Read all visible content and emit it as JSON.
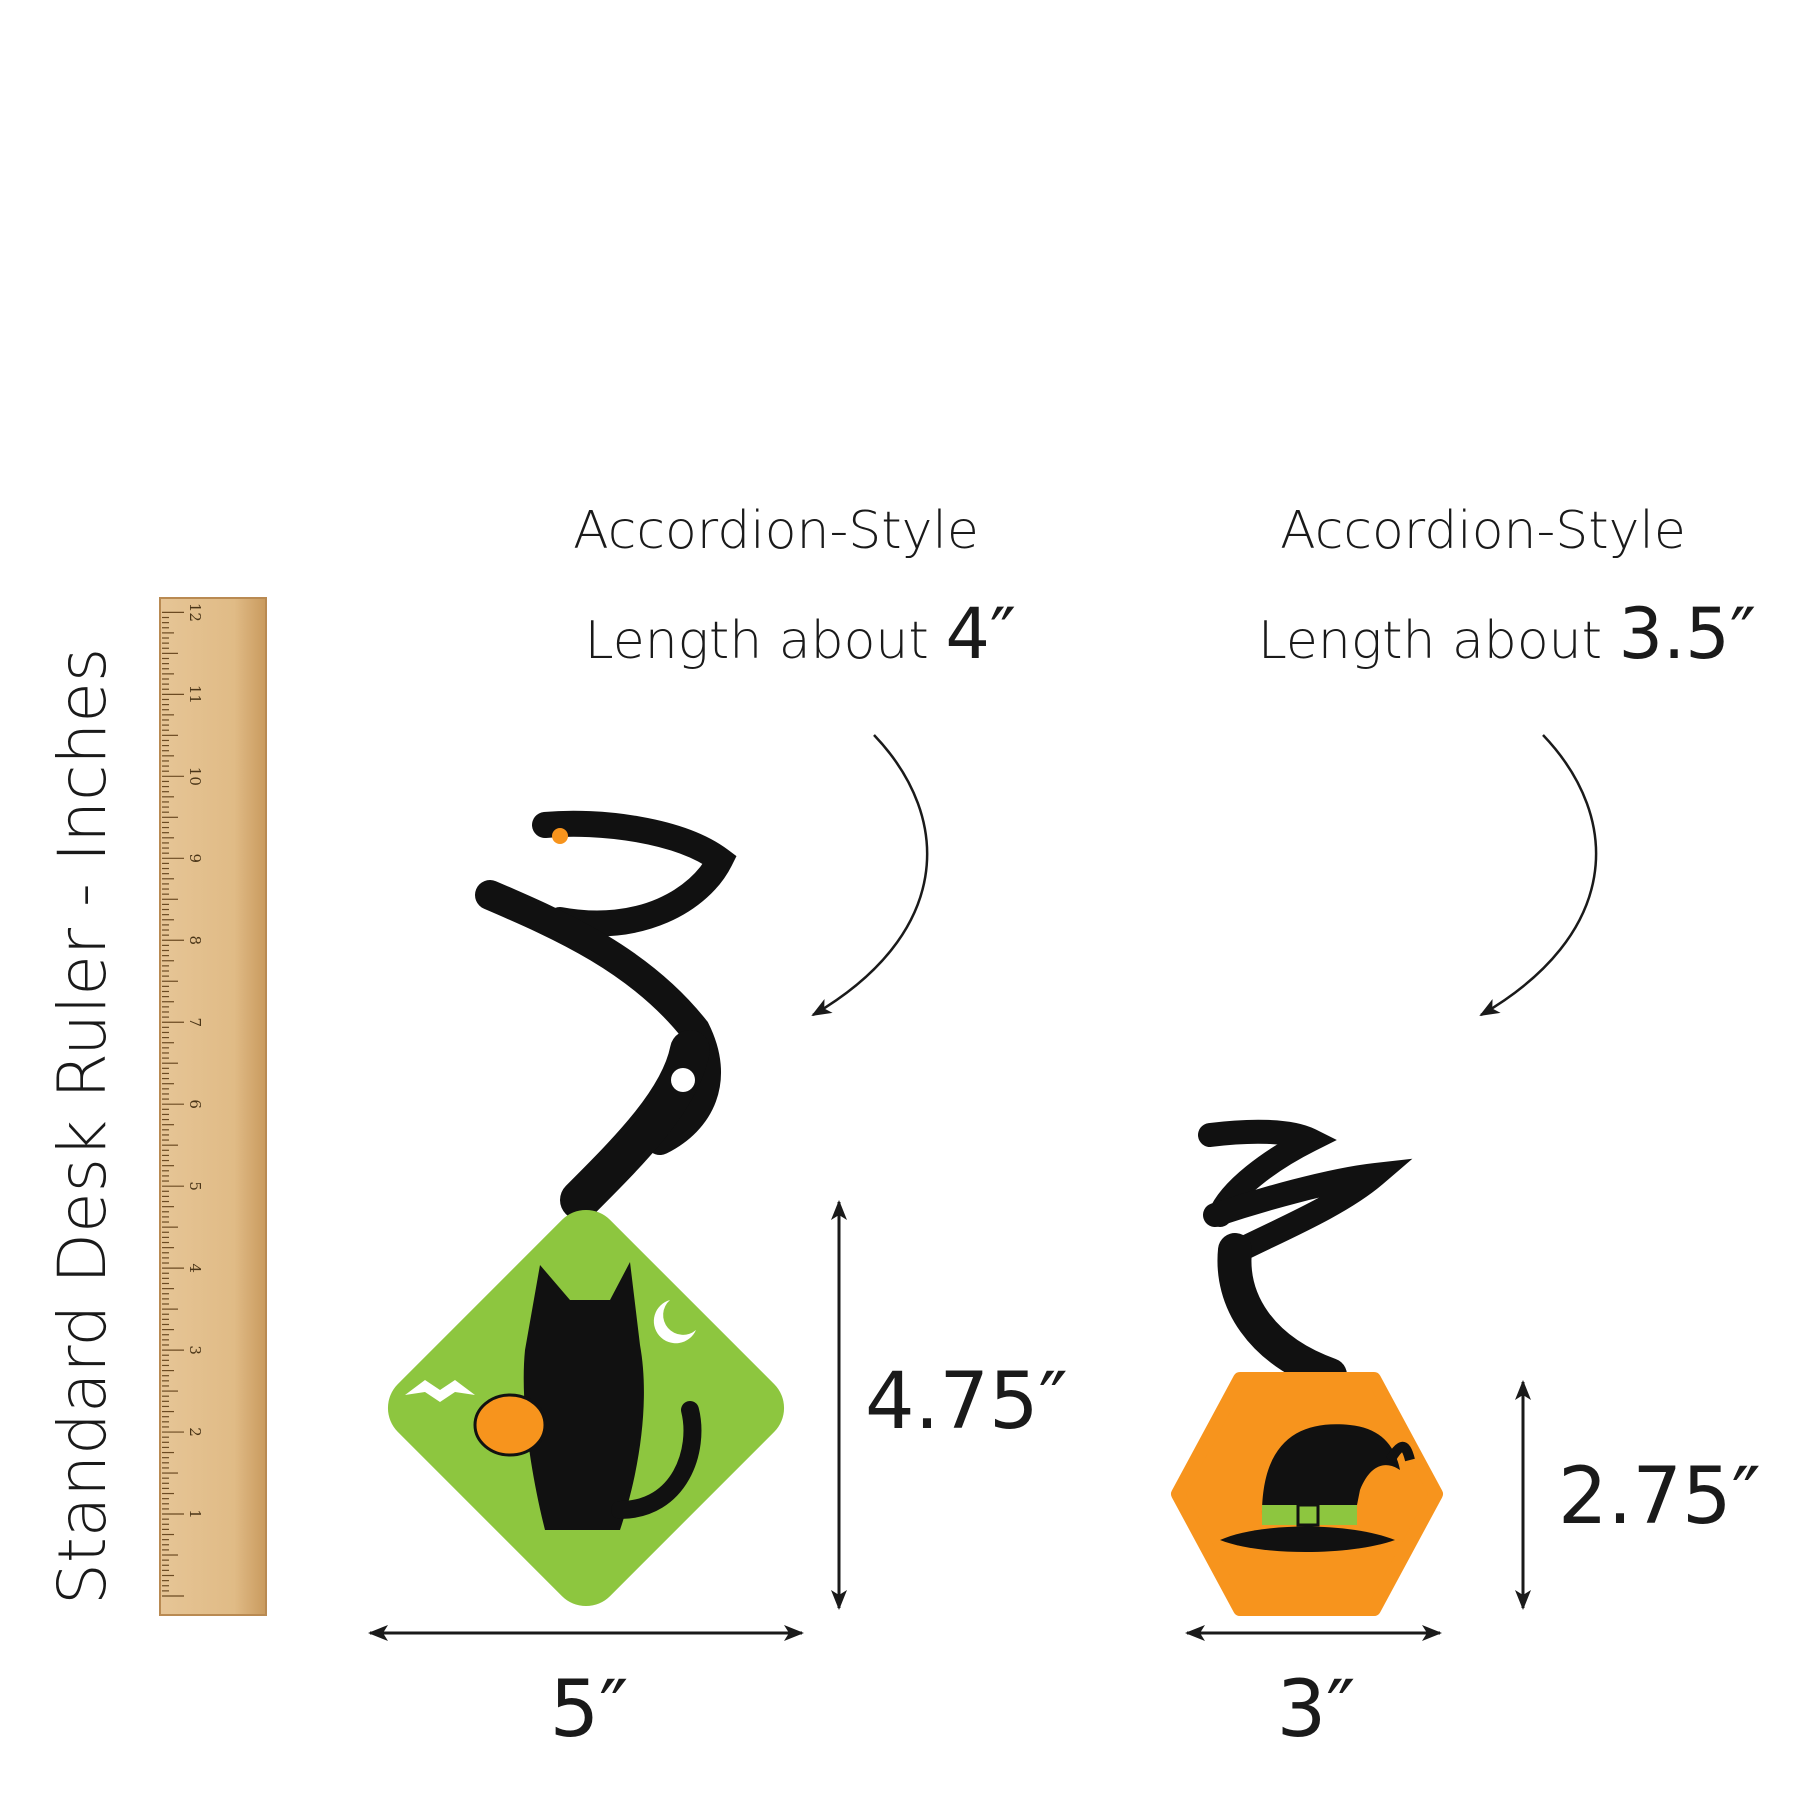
{
  "ruler": {
    "caption": "Standard Desk Ruler - Inches",
    "numbers": [
      "1",
      "2",
      "3",
      "4",
      "5",
      "6",
      "7",
      "8",
      "9",
      "10",
      "11",
      "12"
    ],
    "color": "#e3bf8c"
  },
  "left_item": {
    "style_label": "Accordion-Style",
    "length_prefix": "Length about",
    "length_value": "4″",
    "height": "4.75″",
    "width": "5″",
    "card_color": "#8dc63f",
    "icon": "black-cat-with-pumpkin"
  },
  "right_item": {
    "style_label": "Accordion-Style",
    "length_prefix": "Length about",
    "length_value": "3.5″",
    "height": "2.75″",
    "width": "3″",
    "card_color": "#f7941d",
    "icon": "witch-hat"
  }
}
